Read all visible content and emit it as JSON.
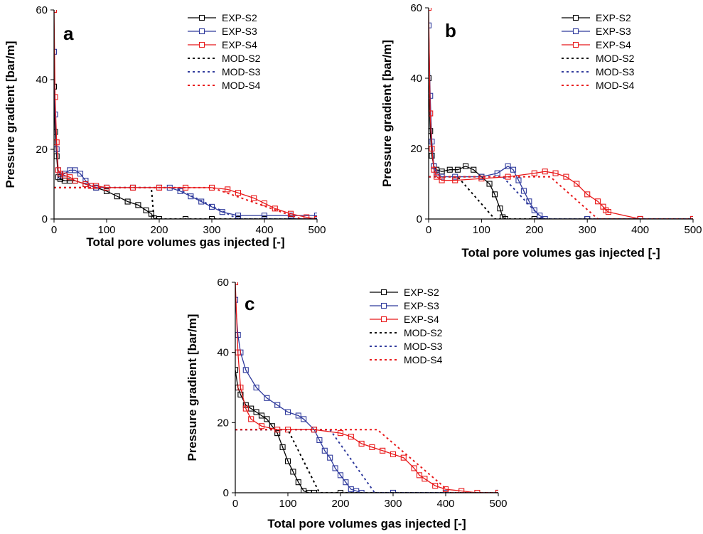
{
  "chart_data": [
    {
      "type": "line",
      "panel_label": "a",
      "xlabel": "Total pore volumes gas injected [-]",
      "ylabel": "Pressure gradient [bar/m]",
      "xlim": [
        0,
        500
      ],
      "ylim": [
        0,
        60
      ],
      "xticks": [
        "0",
        "100",
        "200",
        "300",
        "400",
        "500"
      ],
      "yticks": [
        "0",
        "20",
        "40",
        "60"
      ],
      "grid": false,
      "legend_position": "top-right",
      "series": [
        {
          "name": "EXP-S2",
          "style": "solid-square",
          "color": "#000000",
          "x": [
            0,
            2,
            5,
            8,
            12,
            20,
            30,
            40,
            60,
            80,
            100,
            120,
            140,
            160,
            175,
            185,
            190,
            200,
            250,
            300,
            350,
            400,
            450,
            500
          ],
          "y": [
            38,
            25,
            18,
            12,
            11.5,
            11,
            11,
            11,
            10,
            9,
            8,
            6.5,
            5,
            4,
            2.5,
            1.5,
            0.2,
            0,
            0,
            0,
            0,
            0,
            0,
            0
          ]
        },
        {
          "name": "EXP-S3",
          "style": "solid-square",
          "color": "#2f3a9c",
          "x": [
            0,
            2,
            5,
            8,
            12,
            20,
            30,
            40,
            50,
            60,
            70,
            80,
            100,
            150,
            200,
            220,
            240,
            260,
            280,
            300,
            320,
            350,
            400,
            450,
            500
          ],
          "y": [
            48,
            30,
            20,
            14,
            12.5,
            13,
            14,
            14,
            13,
            11,
            9.5,
            9,
            9,
            9,
            9,
            9,
            8,
            6.5,
            5,
            3.5,
            2,
            1,
            1,
            1,
            1
          ]
        },
        {
          "name": "EXP-S4",
          "style": "solid-square",
          "color": "#e8191a",
          "x": [
            0,
            2,
            5,
            8,
            12,
            20,
            30,
            40,
            60,
            70,
            80,
            100,
            150,
            200,
            250,
            300,
            330,
            350,
            380,
            400,
            420,
            450,
            480,
            500
          ],
          "y": [
            60,
            35,
            22,
            14,
            13,
            12.5,
            12,
            11,
            10,
            9.5,
            9.5,
            9,
            9,
            9,
            9,
            9,
            8.5,
            7.5,
            6,
            4.5,
            3,
            1.5,
            0.5,
            0
          ]
        },
        {
          "name": "MOD-S2",
          "style": "dotted",
          "color": "#000000",
          "x": [
            0,
            185,
            190,
            500
          ],
          "y": [
            9,
            9,
            0,
            0
          ]
        },
        {
          "name": "MOD-S3",
          "style": "dotted",
          "color": "#2f3a9c",
          "x": [
            0,
            230,
            350,
            500
          ],
          "y": [
            9,
            9,
            0,
            0
          ]
        },
        {
          "name": "MOD-S4",
          "style": "dotted",
          "color": "#e8191a",
          "x": [
            0,
            300,
            470,
            500
          ],
          "y": [
            9,
            9,
            0,
            0
          ]
        }
      ]
    },
    {
      "type": "line",
      "panel_label": "b",
      "xlabel": "Total pore volumes gas injected [-]",
      "ylabel": "Pressure gradient [bar/m]",
      "xlim": [
        0,
        500
      ],
      "ylim": [
        0,
        60
      ],
      "xticks": [
        "0",
        "100",
        "200",
        "300",
        "400",
        "500"
      ],
      "yticks": [
        "0",
        "20",
        "40",
        "60"
      ],
      "grid": false,
      "legend_position": "top-right",
      "series": [
        {
          "name": "EXP-S2",
          "style": "solid-square",
          "color": "#000000",
          "x": [
            0,
            3,
            6,
            10,
            15,
            25,
            40,
            55,
            70,
            85,
            100,
            115,
            125,
            135,
            140,
            145,
            200,
            300,
            400,
            500
          ],
          "y": [
            40,
            25,
            18,
            15,
            14,
            13.5,
            14,
            14,
            15,
            14,
            12,
            10,
            7,
            3,
            0.5,
            0,
            0,
            0,
            0,
            0
          ]
        },
        {
          "name": "EXP-S3",
          "style": "solid-square",
          "color": "#2f3a9c",
          "x": [
            0,
            3,
            6,
            10,
            15,
            25,
            50,
            100,
            130,
            150,
            160,
            170,
            180,
            190,
            200,
            210,
            220,
            300,
            400,
            500
          ],
          "y": [
            55,
            35,
            22,
            15,
            13,
            12,
            12,
            12,
            13,
            15,
            14,
            11,
            8,
            5,
            2.5,
            1,
            0,
            0,
            0,
            0
          ]
        },
        {
          "name": "EXP-S4",
          "style": "solid-square",
          "color": "#e8191a",
          "x": [
            0,
            3,
            6,
            10,
            15,
            25,
            50,
            100,
            150,
            200,
            220,
            240,
            260,
            280,
            300,
            320,
            330,
            335,
            340,
            400,
            500
          ],
          "y": [
            60,
            30,
            20,
            14,
            12,
            11,
            11,
            11.5,
            12,
            13,
            13.5,
            13,
            12,
            10,
            7,
            5,
            3.5,
            2.5,
            2,
            0,
            0
          ]
        },
        {
          "name": "MOD-S2",
          "style": "dotted",
          "color": "#000000",
          "x": [
            0,
            55,
            125,
            500
          ],
          "y": [
            12,
            12,
            0,
            0
          ]
        },
        {
          "name": "MOD-S3",
          "style": "dotted",
          "color": "#2f3a9c",
          "x": [
            0,
            140,
            215,
            500
          ],
          "y": [
            12,
            12,
            0,
            0
          ]
        },
        {
          "name": "MOD-S4",
          "style": "dotted",
          "color": "#e8191a",
          "x": [
            0,
            230,
            320,
            500
          ],
          "y": [
            12,
            12,
            0,
            0
          ]
        }
      ]
    },
    {
      "type": "line",
      "panel_label": "c",
      "xlabel": "Total pore volumes gas injected [-]",
      "ylabel": "Pressure gradient [bar/m]",
      "xlim": [
        0,
        500
      ],
      "ylim": [
        0,
        60
      ],
      "xticks": [
        "0",
        "100",
        "200",
        "300",
        "400",
        "500"
      ],
      "yticks": [
        "0",
        "20",
        "40",
        "60"
      ],
      "grid": false,
      "legend_position": "top-right",
      "series": [
        {
          "name": "EXP-S2",
          "style": "solid-square",
          "color": "#000000",
          "x": [
            0,
            5,
            10,
            20,
            30,
            40,
            50,
            60,
            70,
            80,
            90,
            100,
            110,
            120,
            130,
            140,
            150,
            200,
            300,
            400,
            500
          ],
          "y": [
            35,
            30,
            28,
            25,
            24,
            23,
            22,
            21,
            19,
            17,
            13,
            9,
            6,
            3,
            0.5,
            0,
            0,
            0,
            0,
            0,
            0
          ]
        },
        {
          "name": "EXP-S3",
          "style": "solid-square",
          "color": "#2f3a9c",
          "x": [
            0,
            5,
            10,
            20,
            40,
            60,
            80,
            100,
            120,
            130,
            150,
            160,
            170,
            180,
            190,
            200,
            210,
            220,
            230,
            240,
            300,
            400,
            500
          ],
          "y": [
            55,
            45,
            40,
            35,
            30,
            27,
            25,
            23,
            22,
            21,
            18,
            15,
            12,
            10,
            7,
            5,
            3,
            1,
            0.5,
            0,
            0,
            0,
            0
          ]
        },
        {
          "name": "EXP-S4",
          "style": "solid-square",
          "color": "#e8191a",
          "x": [
            0,
            5,
            10,
            20,
            30,
            50,
            80,
            100,
            150,
            200,
            220,
            240,
            260,
            280,
            300,
            320,
            340,
            350,
            360,
            380,
            400,
            430,
            460,
            500
          ],
          "y": [
            60,
            40,
            30,
            24,
            21,
            19,
            18,
            18,
            18,
            17,
            16,
            14,
            13,
            12,
            11,
            10,
            7,
            5,
            4,
            2,
            1,
            0.5,
            0,
            0
          ]
        },
        {
          "name": "MOD-S2",
          "style": "dotted",
          "color": "#000000",
          "x": [
            0,
            100,
            160,
            500
          ],
          "y": [
            18,
            18,
            0,
            0
          ]
        },
        {
          "name": "MOD-S3",
          "style": "dotted",
          "color": "#2f3a9c",
          "x": [
            0,
            180,
            265,
            500
          ],
          "y": [
            18,
            18,
            0,
            0
          ]
        },
        {
          "name": "MOD-S4",
          "style": "dotted",
          "color": "#e8191a",
          "x": [
            0,
            270,
            410,
            500
          ],
          "y": [
            18,
            18,
            0,
            0
          ]
        }
      ]
    }
  ]
}
